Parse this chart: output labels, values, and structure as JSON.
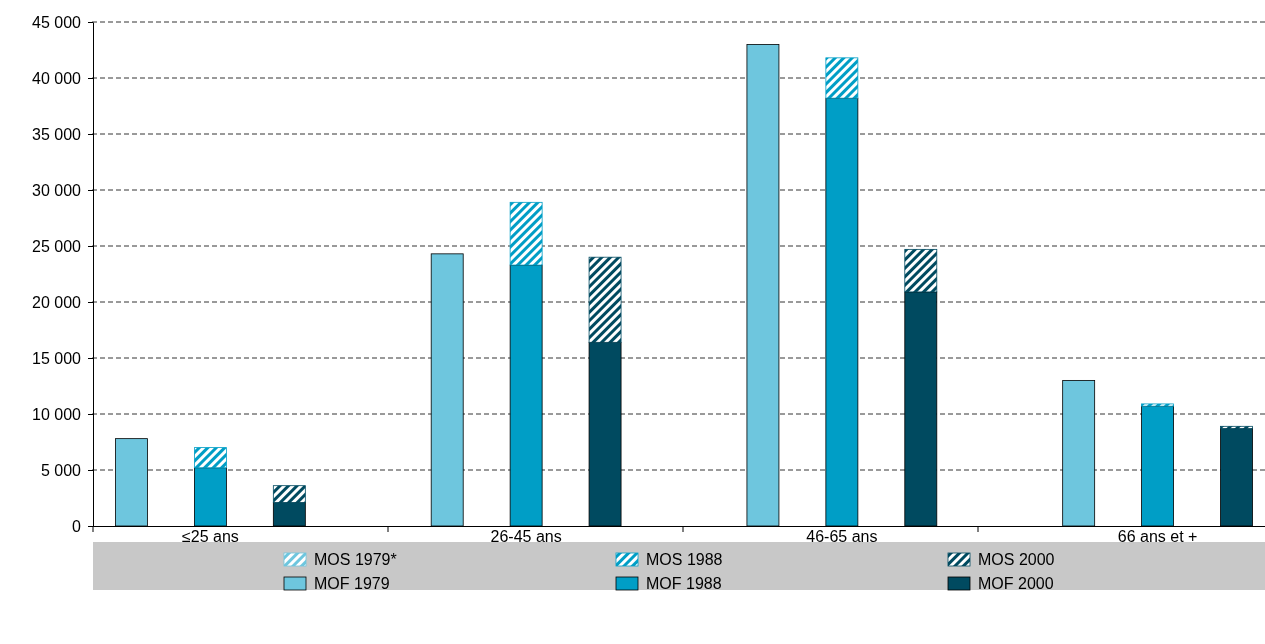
{
  "chart_data": {
    "type": "bar",
    "stacked": true,
    "categories": [
      null,
      "≤25 ans",
      null,
      null,
      null,
      "26-45 ans",
      null,
      null,
      null,
      "46-65 ans",
      null,
      null,
      null,
      "66 ans et +",
      null
    ],
    "series": [
      {
        "name": "MOF 1979",
        "color": "#6ec6de",
        "values": [
          7800,
          null,
          null,
          null,
          24300,
          null,
          null,
          null,
          43000,
          null,
          null,
          null,
          13000,
          null,
          null
        ]
      },
      {
        "name": "MOF 1988",
        "color": "#009ec6",
        "values": [
          null,
          5200,
          null,
          null,
          null,
          23300,
          null,
          null,
          null,
          38200,
          null,
          null,
          null,
          10700,
          null
        ]
      },
      {
        "name": "MOF 2000",
        "color": "#004a60",
        "values": [
          null,
          null,
          2100,
          null,
          null,
          null,
          16400,
          null,
          null,
          null,
          20900,
          null,
          null,
          null,
          8700
        ]
      },
      {
        "name": "MOS 1979*",
        "color": "#6ec6de",
        "values": [
          null,
          null,
          null,
          null,
          null,
          null,
          null,
          null,
          null,
          null,
          null,
          null,
          null,
          null,
          null
        ]
      },
      {
        "name": "MOS 1988",
        "color": "#009ec6",
        "values": [
          null,
          1800,
          null,
          null,
          null,
          5600,
          null,
          null,
          null,
          3600,
          null,
          null,
          null,
          200,
          null
        ]
      },
      {
        "name": "MOS 2000",
        "color": "#004a60",
        "values": [
          null,
          null,
          1500,
          null,
          null,
          null,
          7600,
          null,
          null,
          null,
          3800,
          null,
          null,
          null,
          200
        ]
      }
    ],
    "ylim": [
      0,
      45000
    ],
    "yticks": [
      0,
      {
        "value": 5000,
        "label": "5 000"
      },
      {
        "value": 10000,
        "label": "10 000"
      },
      {
        "value": 15000,
        "label": "15 000"
      },
      {
        "value": 20000,
        "label": "20 000"
      },
      {
        "value": 25000,
        "label": "25 000"
      },
      {
        "value": 30000,
        "label": "30 000"
      },
      {
        "value": 35000,
        "label": "35 000"
      },
      {
        "value": 40000,
        "label": "40 000"
      },
      {
        "value": 45000,
        "label": "45 000"
      }
    ],
    "grid": "y",
    "legend": "bottom"
  }
}
